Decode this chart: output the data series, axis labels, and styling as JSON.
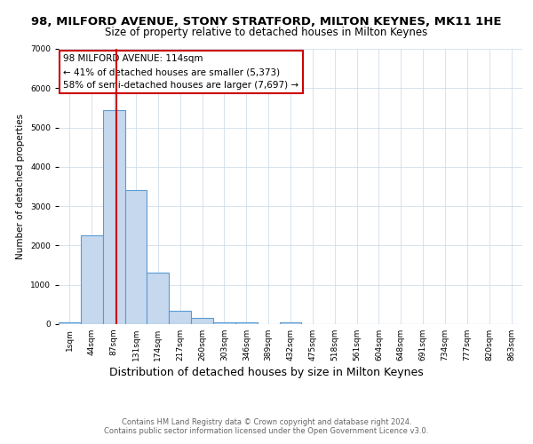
{
  "title": "98, MILFORD AVENUE, STONY STRATFORD, MILTON KEYNES, MK11 1HE",
  "subtitle": "Size of property relative to detached houses in Milton Keynes",
  "xlabel": "Distribution of detached houses by size in Milton Keynes",
  "ylabel": "Number of detached properties",
  "bin_labels": [
    "1sqm",
    "44sqm",
    "87sqm",
    "131sqm",
    "174sqm",
    "217sqm",
    "260sqm",
    "303sqm",
    "346sqm",
    "389sqm",
    "432sqm",
    "475sqm",
    "518sqm",
    "561sqm",
    "604sqm",
    "648sqm",
    "691sqm",
    "734sqm",
    "777sqm",
    "820sqm",
    "863sqm"
  ],
  "bar_heights": [
    50,
    2250,
    5450,
    3400,
    1300,
    350,
    150,
    50,
    50,
    0,
    50,
    0,
    0,
    0,
    0,
    0,
    0,
    0,
    0,
    0,
    0
  ],
  "bar_color": "#c5d8ed",
  "bar_edge_color": "#5b9bd5",
  "vline_color": "#cc0000",
  "annotation_text": "98 MILFORD AVENUE: 114sqm\n← 41% of detached houses are smaller (5,373)\n58% of semi-detached houses are larger (7,697) →",
  "annotation_box_color": "#cc0000",
  "ylim": [
    0,
    7000
  ],
  "yticks": [
    0,
    1000,
    2000,
    3000,
    4000,
    5000,
    6000,
    7000
  ],
  "footer_text": "Contains HM Land Registry data © Crown copyright and database right 2024.\nContains public sector information licensed under the Open Government Licence v3.0.",
  "background_color": "#ffffff",
  "grid_color": "#c8d8e8",
  "title_fontsize": 9.5,
  "subtitle_fontsize": 8.5,
  "ylabel_fontsize": 7.5,
  "xlabel_fontsize": 9,
  "footer_fontsize": 6,
  "annot_fontsize": 7.5,
  "tick_fontsize": 6.5
}
